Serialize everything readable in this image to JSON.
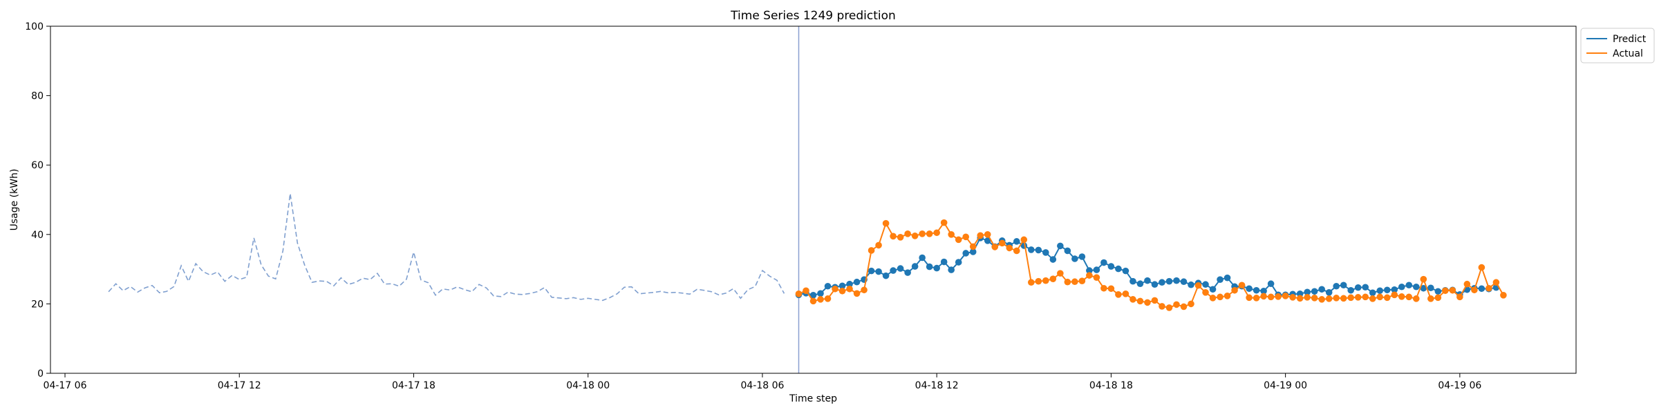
{
  "chart_data": {
    "type": "line",
    "title": "Time Series 1249 prediction",
    "xlabel": "Time step",
    "ylabel": "Usage (kWh)",
    "ylim": [
      0,
      100
    ],
    "yticks": [
      0,
      20,
      40,
      60,
      80,
      100
    ],
    "xlim": [
      "2026-04-17 05:30",
      "2026-04-19 10:00"
    ],
    "xticks": [
      {
        "t": "2026-04-17 06:00",
        "label": "04-17 06"
      },
      {
        "t": "2026-04-17 12:00",
        "label": "04-17 12"
      },
      {
        "t": "2026-04-17 18:00",
        "label": "04-17 18"
      },
      {
        "t": "2026-04-18 00:00",
        "label": "04-18 00"
      },
      {
        "t": "2026-04-18 06:00",
        "label": "04-18 06"
      },
      {
        "t": "2026-04-18 12:00",
        "label": "04-18 12"
      },
      {
        "t": "2026-04-18 18:00",
        "label": "04-18 18"
      },
      {
        "t": "2026-04-19 00:00",
        "label": "04-19 00"
      },
      {
        "t": "2026-04-19 06:00",
        "label": "04-19 06"
      }
    ],
    "legend": "outside-top-right",
    "grid": false,
    "history": {
      "start": "2026-04-17 07:30",
      "step_minutes": 15,
      "color": "#7f9fcf",
      "style": "dashed",
      "values": [
        23.5,
        25.8,
        23.8,
        25.0,
        23.4,
        24.6,
        25.3,
        23.2,
        23.6,
        25.0,
        31.0,
        26.5,
        31.6,
        29.3,
        28.3,
        29.2,
        26.5,
        28.2,
        27.0,
        27.7,
        39.0,
        31.3,
        28.0,
        27.2,
        35.3,
        51.8,
        37.5,
        31.1,
        26.2,
        26.6,
        26.5,
        25.2,
        27.5,
        25.6,
        26.2,
        27.4,
        27.0,
        28.8,
        25.7,
        25.8,
        25.1,
        27.1,
        34.9,
        26.9,
        26.1,
        22.5,
        24.3,
        24.0,
        24.9,
        24.1,
        23.5,
        25.6,
        24.6,
        22.3,
        22.1,
        23.4,
        22.8,
        22.7,
        23.0,
        23.5,
        24.7,
        21.9,
        21.7,
        21.5,
        21.8,
        21.3,
        21.6,
        21.3,
        21.0,
        21.8,
        22.9,
        24.8,
        24.9,
        22.9,
        23.1,
        23.3,
        23.6,
        23.2,
        23.3,
        23.1,
        22.8,
        24.2,
        23.9,
        23.5,
        22.6,
        23.1,
        24.4,
        21.6,
        24.1,
        25.0,
        29.6,
        28.0,
        26.8,
        23.0
      ]
    },
    "forecast_start": "2026-04-18 07:15",
    "forecast_step_minutes": 15,
    "series": [
      {
        "name": "Predict",
        "color": "#1f77b4",
        "values": [
          22.6,
          23.1,
          22.5,
          23.0,
          25.1,
          24.8,
          25.2,
          25.7,
          26.3,
          27.0,
          29.5,
          29.3,
          28.1,
          29.6,
          30.2,
          29.0,
          30.8,
          33.3,
          30.7,
          30.3,
          32.1,
          29.8,
          32.0,
          34.6,
          35.0,
          39.0,
          38.2,
          36.5,
          38.2,
          36.9,
          38.0,
          36.8,
          35.6,
          35.5,
          34.8,
          32.8,
          36.7,
          35.3,
          33.0,
          33.6,
          29.6,
          29.8,
          31.9,
          30.8,
          30.1,
          29.5,
          26.5,
          25.8,
          26.7,
          25.6,
          26.2,
          26.5,
          26.7,
          26.4,
          25.5,
          26.0,
          25.6,
          24.2,
          27.0,
          27.5,
          25.0,
          25.1,
          24.4,
          23.9,
          23.7,
          25.8,
          22.6,
          22.6,
          22.8,
          22.9,
          23.4,
          23.6,
          24.2,
          23.3,
          25.1,
          25.4,
          23.9,
          24.7,
          24.8,
          23.2,
          23.8,
          24.0,
          24.1,
          24.9,
          25.4,
          24.9,
          24.5,
          24.6,
          23.6,
          23.9,
          24.0,
          22.7,
          24.1,
          24.5,
          24.4,
          24.3,
          24.7
        ]
      },
      {
        "name": "Actual",
        "color": "#ff7f0e",
        "values": [
          22.9,
          23.8,
          20.8,
          21.3,
          21.5,
          24.3,
          23.7,
          24.3,
          23.0,
          24.0,
          35.4,
          36.9,
          43.2,
          39.5,
          39.2,
          40.2,
          39.6,
          40.2,
          40.2,
          40.5,
          43.4,
          40.0,
          38.5,
          39.3,
          36.5,
          39.7,
          40.0,
          36.4,
          37.5,
          36.1,
          35.3,
          38.5,
          26.2,
          26.5,
          26.7,
          27.2,
          28.8,
          26.3,
          26.4,
          26.6,
          28.2,
          27.6,
          24.5,
          24.4,
          22.7,
          22.9,
          21.3,
          20.8,
          20.4,
          21.0,
          19.3,
          18.9,
          19.8,
          19.2,
          20.0,
          25.3,
          23.3,
          21.7,
          22.0,
          22.3,
          23.9,
          25.4,
          21.8,
          21.7,
          22.2,
          22.0,
          22.1,
          22.3,
          21.9,
          21.6,
          21.9,
          21.7,
          21.3,
          21.5,
          21.7,
          21.6,
          21.8,
          21.9,
          22.0,
          21.5,
          22.0,
          21.8,
          22.6,
          22.1,
          22.0,
          21.5,
          27.1,
          21.5,
          21.8,
          23.8,
          23.9,
          22.0,
          25.7,
          24.0,
          30.5,
          24.5,
          26.2,
          22.5
        ]
      }
    ],
    "vline": {
      "t": "2026-04-18 07:15",
      "color": "#8a9fd1"
    }
  }
}
